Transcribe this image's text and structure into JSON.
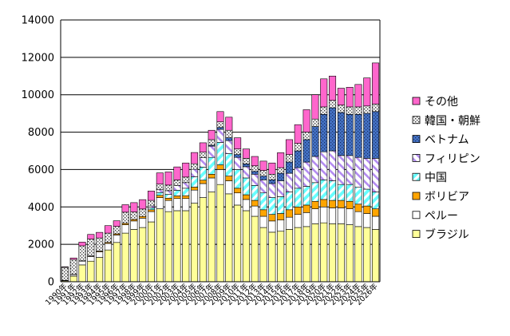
{
  "chart_data": {
    "type": "bar",
    "stacked": true,
    "ylim": [
      0,
      14000
    ],
    "yticks": [
      0,
      2000,
      4000,
      6000,
      8000,
      10000,
      12000,
      14000
    ],
    "grid": "horizontal",
    "legend_position": "right",
    "categories": [
      "1990年",
      "1991年",
      "1992年",
      "1993年",
      "1994年",
      "1995年",
      "1996年",
      "1997年",
      "1998年",
      "1999年",
      "2000年",
      "2001年",
      "2002年",
      "2003年",
      "2004年",
      "2005年",
      "2006年",
      "2007年",
      "2008年",
      "2009年",
      "2010年",
      "2011年",
      "2012年",
      "2013年",
      "2014年",
      "2015年",
      "2016年",
      "2017年",
      "2018年",
      "2019年",
      "2020年",
      "2021年",
      "2022年",
      "2023年",
      "2024年",
      "2025年",
      "2026年"
    ],
    "series": [
      {
        "name": "ブラジル",
        "color": "#ffff99",
        "pattern": "solid",
        "values": [
          50,
          300,
          900,
          1100,
          1300,
          1700,
          2100,
          2600,
          2800,
          2900,
          3200,
          3900,
          3750,
          3800,
          3800,
          4200,
          4500,
          4800,
          5200,
          4700,
          4100,
          3800,
          3500,
          2900,
          2650,
          2700,
          2800,
          2900,
          2950,
          3100,
          3150,
          3100,
          3100,
          3050,
          2950,
          2900,
          2800
        ]
      },
      {
        "name": "ペルー",
        "color": "#ffffff",
        "pattern": "white",
        "values": [
          20,
          80,
          200,
          250,
          300,
          350,
          400,
          450,
          450,
          500,
          550,
          600,
          600,
          650,
          650,
          700,
          750,
          750,
          800,
          700,
          650,
          600,
          550,
          600,
          600,
          600,
          650,
          700,
          750,
          800,
          850,
          850,
          850,
          850,
          800,
          750,
          700
        ]
      },
      {
        "name": "ボリビア",
        "color": "#ffa500",
        "pattern": "solid",
        "values": [
          0,
          10,
          20,
          30,
          40,
          50,
          60,
          70,
          80,
          90,
          100,
          120,
          120,
          140,
          150,
          160,
          180,
          200,
          250,
          250,
          250,
          250,
          300,
          350,
          350,
          350,
          400,
          400,
          400,
          400,
          400,
          400,
          400,
          400,
          400,
          400,
          400
        ]
      },
      {
        "name": "中国",
        "color": "#66ffff",
        "pattern": "diag",
        "values": [
          0,
          0,
          0,
          0,
          0,
          0,
          0,
          0,
          0,
          0,
          100,
          150,
          200,
          300,
          400,
          550,
          700,
          900,
          1200,
          1200,
          1000,
          900,
          800,
          900,
          900,
          900,
          950,
          1000,
          1000,
          1000,
          1050,
          1050,
          850,
          900,
          900,
          900,
          900
        ]
      },
      {
        "name": "フィリピン",
        "color": "#cc99ff",
        "pattern": "diag",
        "values": [
          0,
          0,
          0,
          0,
          0,
          0,
          0,
          0,
          0,
          0,
          100,
          150,
          200,
          250,
          300,
          400,
          500,
          600,
          700,
          700,
          650,
          600,
          600,
          700,
          750,
          850,
          1000,
          1100,
          1300,
          1400,
          1500,
          1600,
          1550,
          1550,
          1600,
          1650,
          1800
        ]
      },
      {
        "name": "ベトナム",
        "color": "#4472c4",
        "pattern": "dots",
        "values": [
          0,
          0,
          0,
          0,
          0,
          0,
          0,
          0,
          0,
          0,
          0,
          0,
          0,
          0,
          0,
          0,
          0,
          50,
          100,
          150,
          150,
          150,
          150,
          200,
          200,
          400,
          600,
          900,
          1200,
          1600,
          2000,
          2300,
          2300,
          2200,
          2300,
          2400,
          2500
        ]
      },
      {
        "name": "韓国・朝鮮",
        "color": "#f0f0f0",
        "pattern": "dots",
        "values": [
          700,
          800,
          800,
          900,
          700,
          500,
          400,
          600,
          400,
          400,
          300,
          300,
          300,
          300,
          300,
          300,
          300,
          300,
          300,
          400,
          300,
          300,
          300,
          300,
          300,
          300,
          400,
          400,
          400,
          400,
          400,
          400,
          400,
          400,
          400,
          400,
          400
        ]
      },
      {
        "name": "その他",
        "color": "#ff66cc",
        "pattern": "solid",
        "values": [
          30,
          80,
          200,
          250,
          300,
          400,
          300,
          400,
          500,
          500,
          500,
          600,
          700,
          700,
          750,
          600,
          500,
          500,
          550,
          700,
          600,
          500,
          500,
          500,
          600,
          800,
          800,
          1000,
          1200,
          1300,
          1500,
          1300,
          900,
          1050,
          1200,
          1500,
          2200
        ]
      }
    ]
  }
}
